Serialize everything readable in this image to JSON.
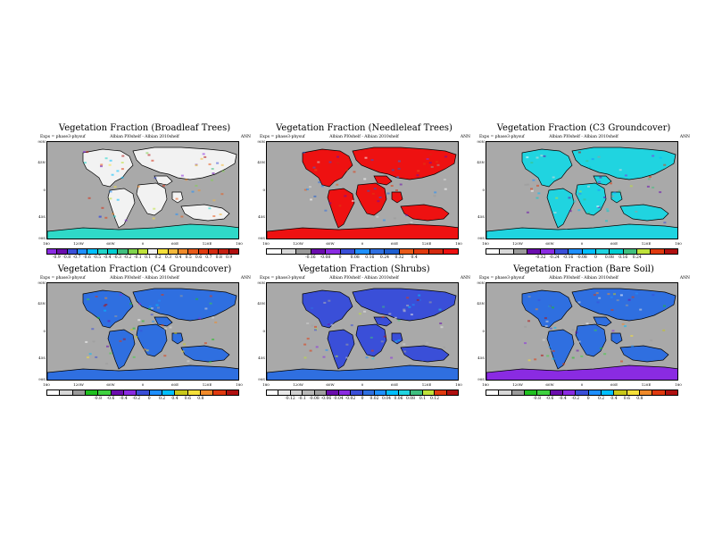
{
  "panels": [
    {
      "title": "Vegetation Fraction (Broadleaf Trees)",
      "left": "Exps = phase3-physuf",
      "mid": "Albian  PI0shelf - Albian  2010shelf",
      "right": "ANN",
      "land_color": "#f2f2f2",
      "ocean_color": "#a9a9a9",
      "polar_color": "#2fd9c8",
      "colors": [
        "#8a2be2",
        "#6a0dad",
        "#3a4fd8",
        "#1e8fff",
        "#00bfff",
        "#20d4c8",
        "#00ced1",
        "#3fbf7f",
        "#7fd44c",
        "#bfe23a",
        "#f2f2f2",
        "#f5e03a",
        "#f3b83a",
        "#f08a2a",
        "#e85a1a",
        "#e03a0f",
        "#d42a10",
        "#c41e10",
        "#b01010"
      ],
      "ticks": [
        "-0.9",
        "-0.8",
        "-0.7",
        "-0.6",
        "-0.5",
        "-0.4",
        "-0.3",
        "-0.2",
        "-0.1",
        "0.1",
        "0.2",
        "0.3",
        "0.4",
        "0.5",
        "0.6",
        "0.7",
        "0.8",
        "0.9"
      ]
    },
    {
      "title": "Vegetation Fraction (Needleleaf Trees)",
      "left": "Exps = phase3-physuf",
      "mid": "Albian  PI0shelf - Albian  2010shelf",
      "right": "ANN",
      "land_color": "#ee1111",
      "ocean_color": "#a9a9a9",
      "polar_color": "#ee1111",
      "colors": [
        "#ffffff",
        "#d8d8d8",
        "#9a9a9a",
        "#6a0dad",
        "#8a2be2",
        "#3a4fd8",
        "#1e8fff",
        "#2f6fe0",
        "#1f5fd0",
        "#e85a1a",
        "#e03a0f",
        "#d42a10",
        "#ee1111"
      ],
      "ticks": [
        "-0.16",
        "-0.08",
        "0",
        "0.08",
        "0.16",
        "0.24",
        "0.32",
        "0.4"
      ]
    },
    {
      "title": "Vegetation Fraction (C3 Groundcover)",
      "left": "Exps = phase3-physuf",
      "mid": "Albian  PI0shelf - Albian  2010shelf",
      "right": "ANN",
      "land_color": "#20d4e0",
      "ocean_color": "#a9a9a9",
      "polar_color": "#20d4e0",
      "colors": [
        "#ffffff",
        "#d8d8d8",
        "#9a9a9a",
        "#6a0dad",
        "#8a2be2",
        "#3a4fd8",
        "#1e8fff",
        "#00bfff",
        "#20d4e0",
        "#00ced1",
        "#3fbf7f",
        "#bfe23a",
        "#e03a0f",
        "#b01010"
      ],
      "ticks": [
        "-0.32",
        "-0.24",
        "-0.16",
        "-0.08",
        "0",
        "0.08",
        "0.16",
        "0.24"
      ]
    },
    {
      "title": "Vegetation Fraction (C4 Groundcover)",
      "left": "Exps = phase3-physuf",
      "mid": "Albian  PI0shelf - Albian  2010shelf",
      "right": "ANN",
      "land_color": "#2f6fe0",
      "ocean_color": "#a9a9a9",
      "polar_color": "#2f6fe0",
      "colors": [
        "#ffffff",
        "#d8d8d8",
        "#9a9a9a",
        "#20c020",
        "#3fd040",
        "#6a0dad",
        "#8a2be2",
        "#3a4fd8",
        "#1e8fff",
        "#00bfff",
        "#c8c81a",
        "#f5e03a",
        "#f08a2a",
        "#e03a0f",
        "#b01010"
      ],
      "ticks": [
        "-0.8",
        "-0.6",
        "-0.4",
        "-0.2",
        "0",
        "0.2",
        "0.4",
        "0.6",
        "0.8"
      ]
    },
    {
      "title": "Vegetation Fraction (Shrubs)",
      "left": "Exps = phase3-physuf",
      "mid": "Albian  PI0shelf - Albian  2010shelf",
      "right": "ANN",
      "land_color": "#3a4fd8",
      "ocean_color": "#a9a9a9",
      "polar_color": "#2f6fe0",
      "colors": [
        "#ffffff",
        "#e8e8e8",
        "#d0d0d0",
        "#b8b8b8",
        "#a0a0a0",
        "#6a0dad",
        "#8a2be2",
        "#3a4fd8",
        "#2f6fe0",
        "#1e8fff",
        "#00bfff",
        "#20d4e0",
        "#3fbf7f",
        "#bfe23a",
        "#e03a0f",
        "#b01010"
      ],
      "ticks": [
        "-0.12",
        "-0.1",
        "-0.08",
        "-0.06",
        "-0.04",
        "-0.02",
        "0",
        "0.02",
        "0.04",
        "0.06",
        "0.08",
        "0.1",
        "0.12"
      ]
    },
    {
      "title": "Vegetation Fraction (Bare Soil)",
      "left": "Exps = phase3-physuf",
      "mid": "Albian  PI0shelf - Albian  2010shelf",
      "right": "ANN",
      "land_color": "#2f6fe0",
      "ocean_color": "#a9a9a9",
      "polar_color": "#8a2be2",
      "colors": [
        "#ffffff",
        "#d8d8d8",
        "#9a9a9a",
        "#20c020",
        "#3fd040",
        "#6a0dad",
        "#8a2be2",
        "#3a4fd8",
        "#1e8fff",
        "#00bfff",
        "#c8c81a",
        "#f5e03a",
        "#f08a2a",
        "#e03a0f",
        "#b01010"
      ],
      "ticks": [
        "-0.8",
        "-0.6",
        "-0.4",
        "-0.2",
        "0",
        "0.2",
        "0.4",
        "0.6",
        "0.8"
      ]
    }
  ],
  "lat_labels": [
    "90N",
    "45N",
    "0",
    "45S",
    "90S"
  ],
  "lon_labels": [
    "180",
    "120W",
    "60W",
    "0",
    "60E",
    "120E",
    "180"
  ]
}
